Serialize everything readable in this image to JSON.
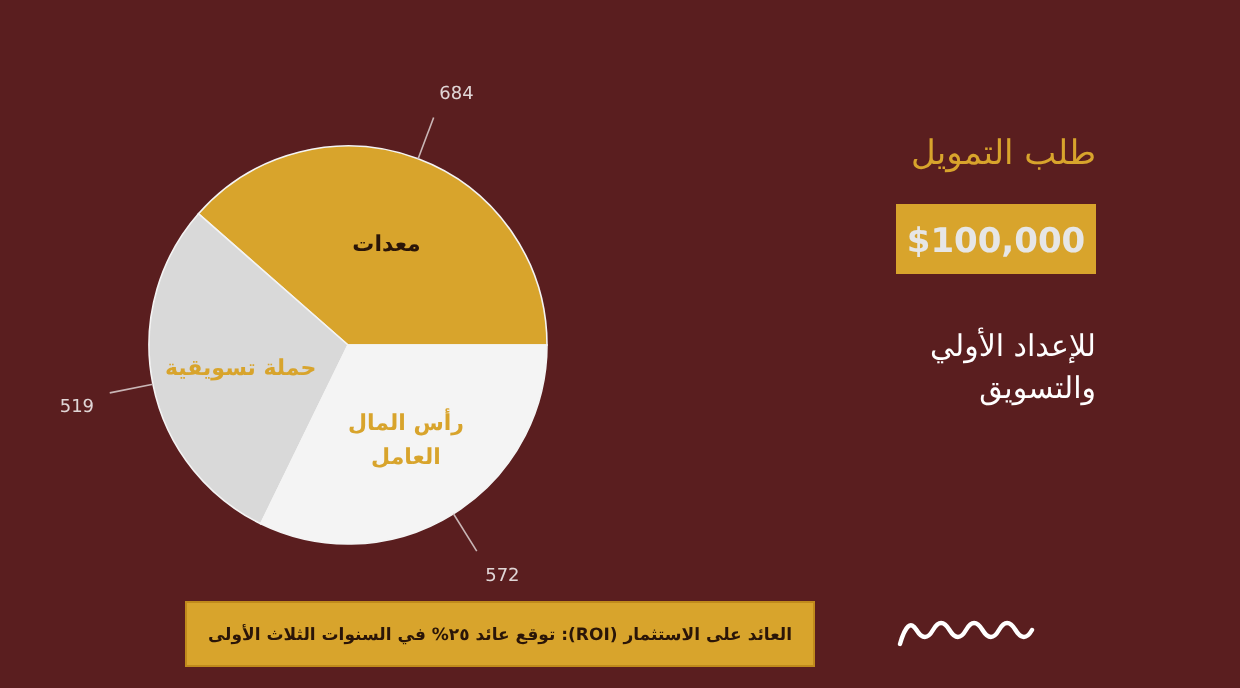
{
  "chart_data": {
    "type": "pie",
    "title": "طلب التمويل",
    "subtitle": "$100,000",
    "categories": [
      "معدات",
      "حملة تسويقية",
      "رأس المال العامل"
    ],
    "values": [
      684,
      519,
      572
    ],
    "colors": [
      "#d8a42c",
      "#d9d9d9",
      "#f4f4f4"
    ],
    "data_labels": true,
    "annotations": [
      "للإعداد الأولي والتسويق",
      "العائد على الاستثمار (ROI): توقع عائد ٢٥% في السنوات الثلاث الأولى"
    ]
  }
}
